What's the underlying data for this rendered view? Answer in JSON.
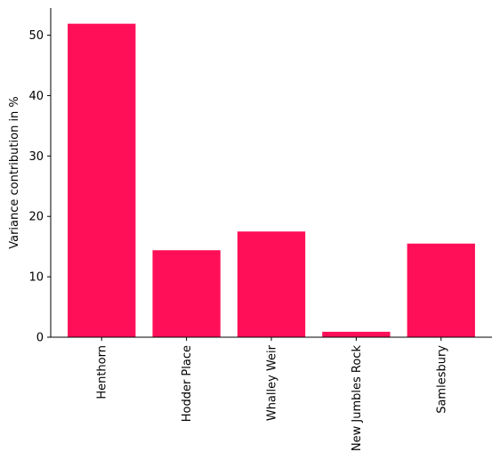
{
  "chart_data": {
    "type": "bar",
    "title": "",
    "xlabel": "",
    "ylabel": "Variance contribution in %",
    "categories": [
      "Henthorn",
      "Hodder Place",
      "Whalley Weir",
      "New Jumbles Rock",
      "Samlesbury"
    ],
    "values": [
      51.9,
      14.4,
      17.5,
      0.9,
      15.5
    ],
    "ylim": [
      0,
      54.5
    ],
    "yticks": [
      0,
      10,
      20,
      30,
      40,
      50
    ],
    "grid": false,
    "legend": "none",
    "bar_color": "#ff0f57"
  }
}
